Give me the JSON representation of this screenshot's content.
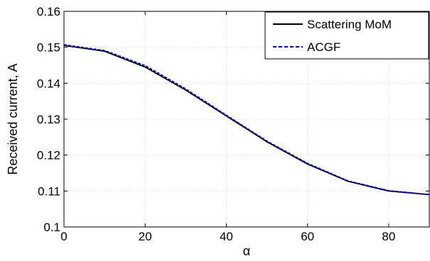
{
  "chart_data": {
    "type": "line",
    "xlabel": "α",
    "ylabel": "Received current, A",
    "xlim": [
      0,
      90
    ],
    "ylim": [
      0.1,
      0.16
    ],
    "x_ticks": [
      "0",
      "20",
      "40",
      "60",
      "80"
    ],
    "x_tick_values": [
      0,
      20,
      40,
      60,
      80
    ],
    "y_ticks": [
      "0.1",
      "0.11",
      "0.12",
      "0.13",
      "0.14",
      "0.15",
      "0.16"
    ],
    "y_tick_values": [
      0.1,
      0.11,
      0.12,
      0.13,
      0.14,
      0.15,
      0.16
    ],
    "grid": true,
    "legend_position": "top-right",
    "x": [
      0,
      10,
      20,
      30,
      40,
      50,
      60,
      70,
      80,
      90
    ],
    "series": [
      {
        "name": "Scattering MoM",
        "color": "#000000",
        "dash": "solid",
        "values": [
          0.1505,
          0.1489,
          0.1445,
          0.1381,
          0.1309,
          0.1237,
          0.1175,
          0.1127,
          0.11,
          0.109
        ]
      },
      {
        "name": "ACGF",
        "color": "#0000cc",
        "dash": "dashed",
        "values": [
          0.1507,
          0.1491,
          0.1449,
          0.1384,
          0.1311,
          0.1239,
          0.1177,
          0.1128,
          0.1101,
          0.109
        ]
      }
    ]
  }
}
